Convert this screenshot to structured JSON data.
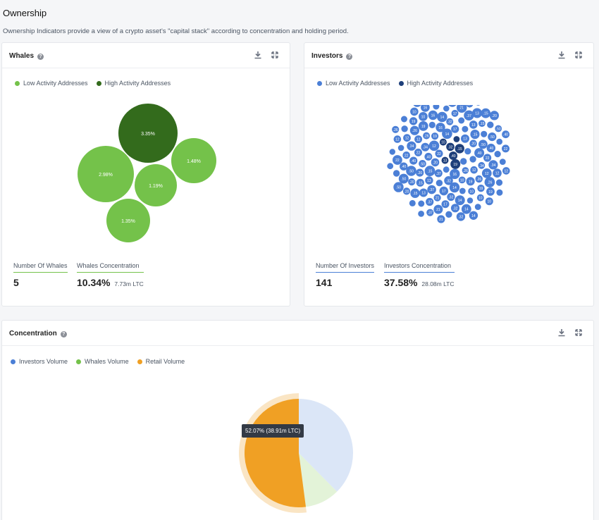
{
  "page": {
    "title": "Ownership",
    "subtitle": "Ownership Indicators provide a view of a crypto asset's \"capital stack\" according to concentration and holding period."
  },
  "whales": {
    "title": "Whales",
    "legend": [
      "Low Activity Addresses",
      "High Activity Addresses"
    ],
    "colors": {
      "low": "#74c24a",
      "high": "#336b1c"
    },
    "bubbles": [
      {
        "label": "3.35%",
        "kind": "high"
      },
      {
        "label": "2.98%",
        "kind": "low"
      },
      {
        "label": "1.48%",
        "kind": "low"
      },
      {
        "label": "1.19%",
        "kind": "low"
      },
      {
        "label": "1.35%",
        "kind": "low"
      }
    ],
    "count_label": "Number Of Whales",
    "count_value": "5",
    "concentration_label": "Whales Concentration",
    "concentration_value": "10.34%",
    "concentration_extra": "7.73m LTC"
  },
  "investors": {
    "title": "Investors",
    "legend": [
      "Low Activity Addresses",
      "High Activity Addresses"
    ],
    "colors": {
      "low": "#4b7fd6",
      "high": "#1e3f7a"
    },
    "count_label": "Number Of Investors",
    "count_value": "141",
    "concentration_label": "Investors Concentration",
    "concentration_value": "37.58%",
    "concentration_extra": "28.08m LTC"
  },
  "concentration": {
    "title": "Concentration",
    "legend": [
      "Investors Volume",
      "Whales Volume",
      "Retail Volume"
    ],
    "colors": {
      "investors": "#4b7fd6",
      "whales": "#74c24a",
      "retail": "#f0a024"
    },
    "tooltip": "52.07% (38.91m LTC)"
  },
  "chart_data": {
    "type": "pie",
    "title": "Concentration",
    "categories": [
      "Investors Volume",
      "Whales Volume",
      "Retail Volume"
    ],
    "values": [
      37.58,
      10.34,
      52.07
    ]
  }
}
